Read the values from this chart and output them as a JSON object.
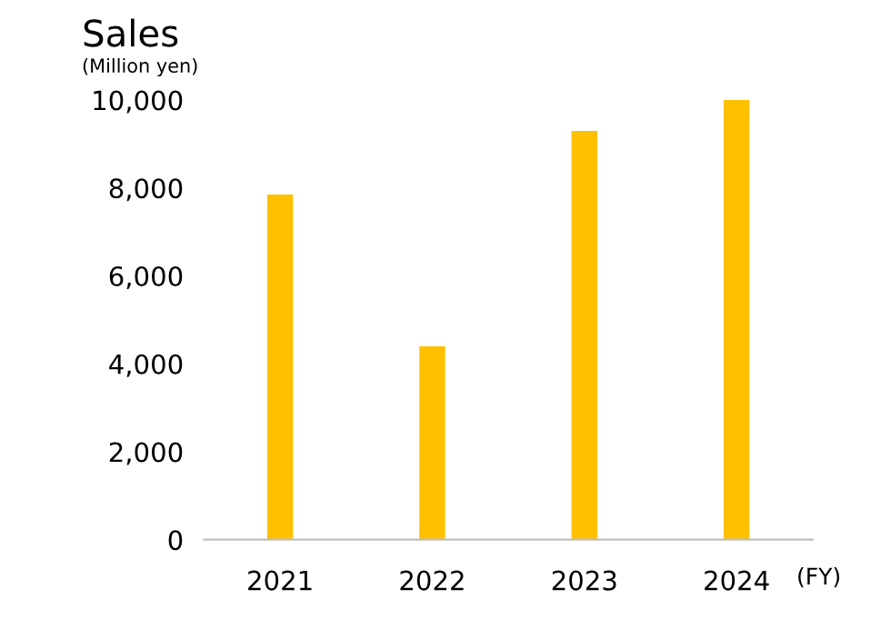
{
  "chart_data": {
    "type": "bar",
    "title": "Sales",
    "subtitle": "(Million yen)",
    "xlabel": "(FY)",
    "categories": [
      "2021",
      "2022",
      "2023",
      "2024"
    ],
    "values": [
      7850,
      4400,
      9300,
      10000
    ],
    "color": "#ffc000",
    "ylim": [
      0,
      10000
    ],
    "yticks": [
      {
        "value": 0,
        "label": "0"
      },
      {
        "value": 2000,
        "label": "2,000"
      },
      {
        "value": 4000,
        "label": "4,000"
      },
      {
        "value": 6000,
        "label": "6,000"
      },
      {
        "value": 8000,
        "label": "8,000"
      },
      {
        "value": 10000,
        "label": "10,000"
      }
    ],
    "grid": false,
    "legend": false
  }
}
